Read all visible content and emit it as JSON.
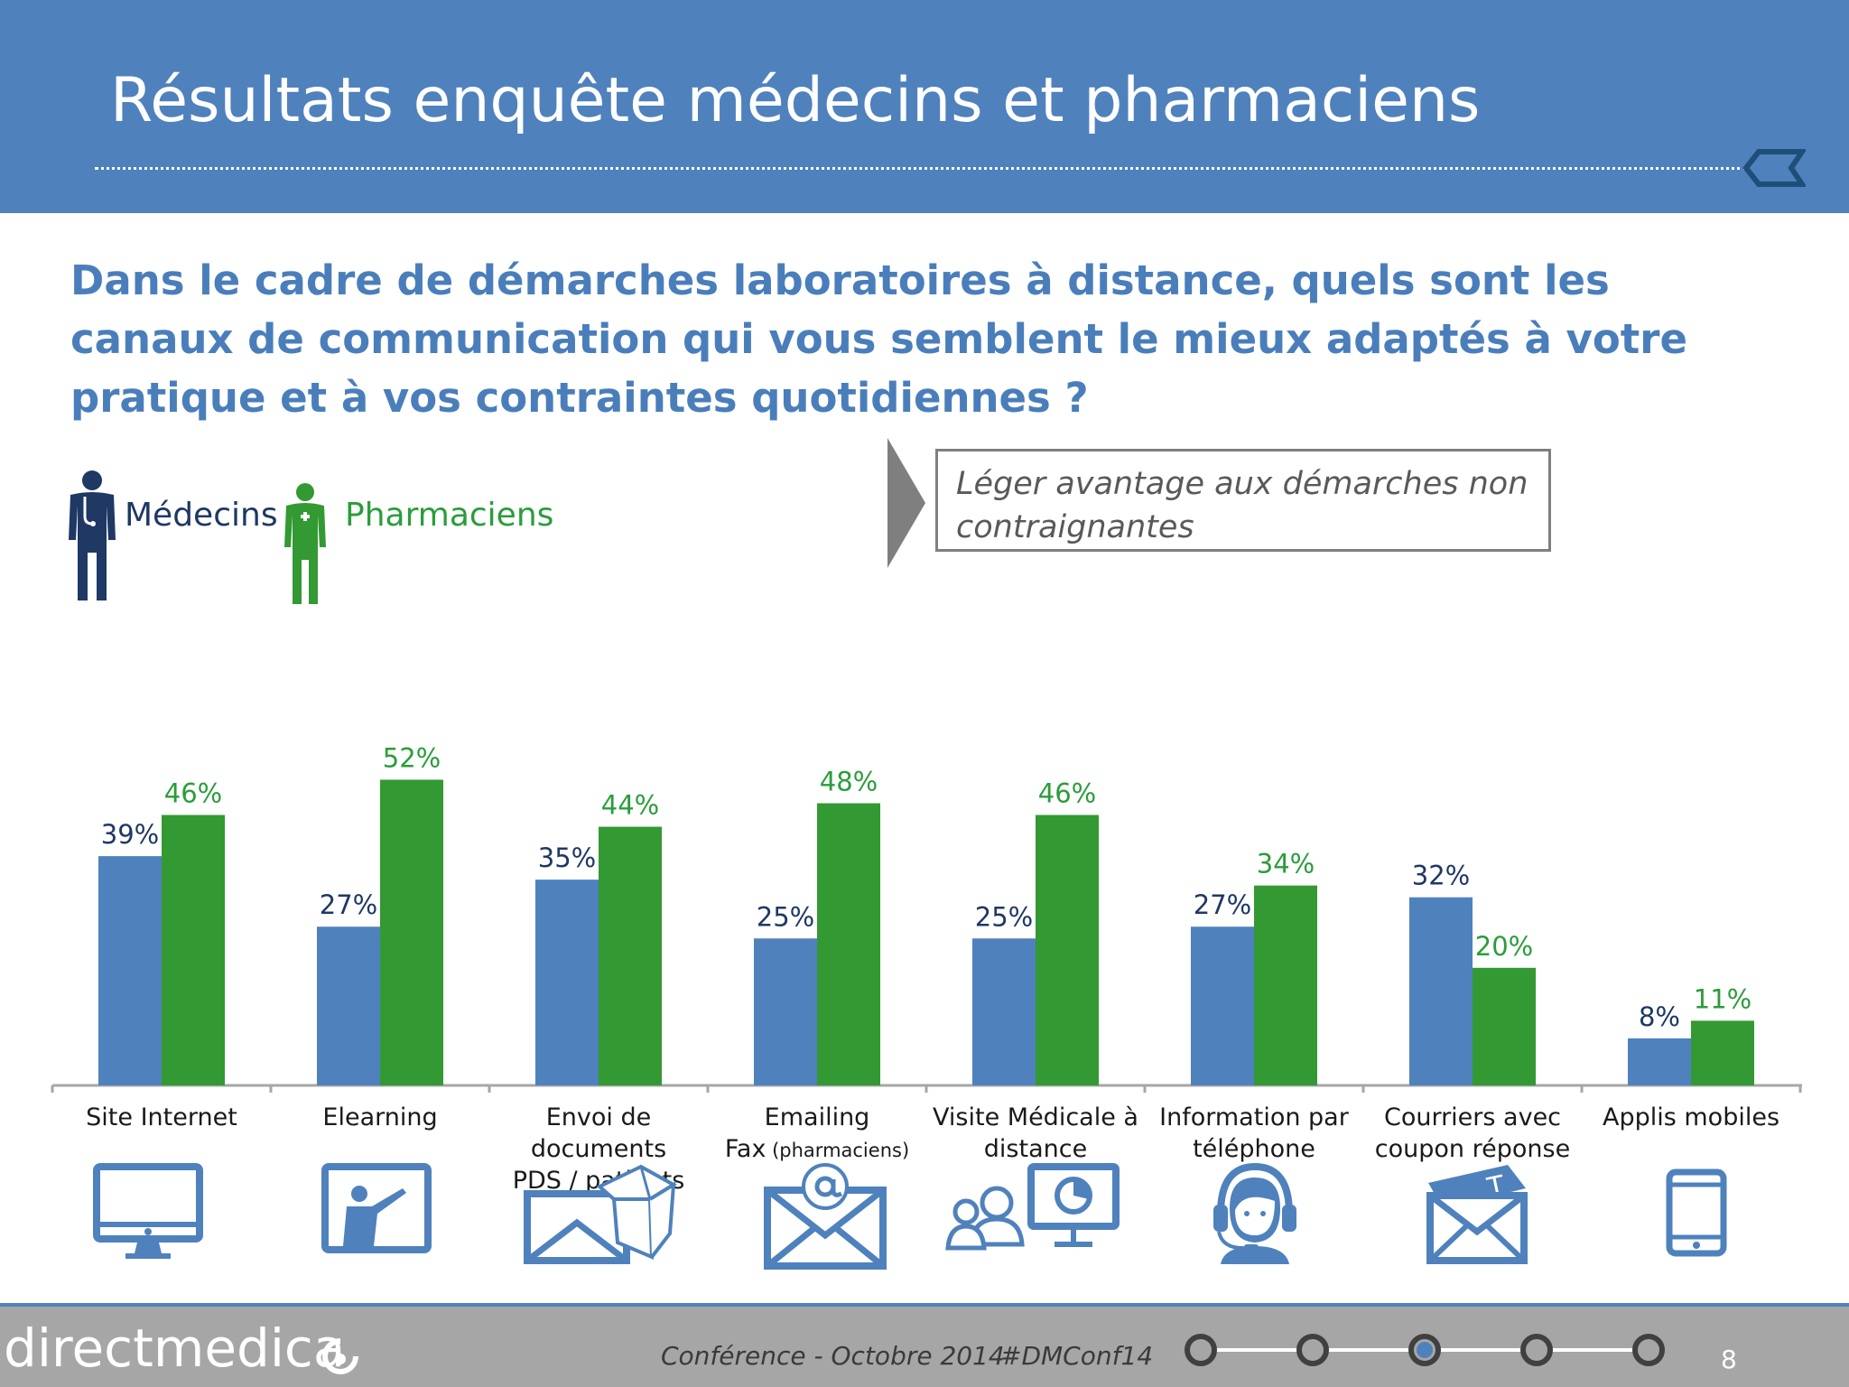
{
  "header": {
    "title": "Résultats enquête médecins et pharmaciens"
  },
  "question": "Dans le cadre de démarches laboratoires à distance, quels sont les canaux de communication qui vous semblent le mieux adaptés à votre pratique et à vos contraintes quotidiennes ?",
  "legend": {
    "medecins": {
      "label": "Médecins",
      "color": "#4f81bd",
      "icon": "doctor-icon"
    },
    "pharmaciens": {
      "label": "Pharmaciens",
      "color": "#339933",
      "icon": "pharmacist-icon"
    }
  },
  "callout": {
    "text": "Léger avantage aux démarches non contraignantes"
  },
  "chart_data": {
    "type": "bar",
    "categories": [
      [
        "Site Internet"
      ],
      [
        "Elearning"
      ],
      [
        "Envoi de documents",
        "PDS / patients"
      ],
      [
        "Emailing",
        "Fax",
        " (pharmaciens)"
      ],
      [
        "Visite Médicale à",
        "distance"
      ],
      [
        "Information par",
        "téléphone"
      ],
      [
        "Courriers avec",
        "coupon réponse"
      ],
      [
        "Applis mobiles"
      ]
    ],
    "series": [
      {
        "name": "Médecins",
        "color": "#4f81bd",
        "label_color": "#1f3864",
        "values": [
          39,
          27,
          35,
          25,
          25,
          27,
          32,
          8
        ],
        "labels": [
          "39%",
          "27%",
          "35%",
          "25%",
          "25%",
          "27%",
          "32%",
          "8%"
        ]
      },
      {
        "name": "Pharmaciens",
        "color": "#339933",
        "label_color": "#2a9d3a",
        "values": [
          46,
          52,
          44,
          48,
          46,
          34,
          20,
          11
        ],
        "labels": [
          "46%",
          "52%",
          "44%",
          "48%",
          "46%",
          "34%",
          "20%",
          "11%"
        ]
      }
    ],
    "ylim": [
      0,
      60
    ],
    "grid": false,
    "legend": "top-left"
  },
  "channel_icons": [
    "monitor-icon",
    "elearning-icon",
    "envelope-box-icon",
    "email-at-icon",
    "video-conference-icon",
    "headset-icon",
    "mail-coupon-icon",
    "mobile-phone-icon"
  ],
  "footer": {
    "brand": "directmedica",
    "conference": "Conférence - Octobre 2014",
    "hashtag": "#DMConf14",
    "progress": {
      "steps": 5,
      "current": 3
    },
    "page": "8"
  }
}
